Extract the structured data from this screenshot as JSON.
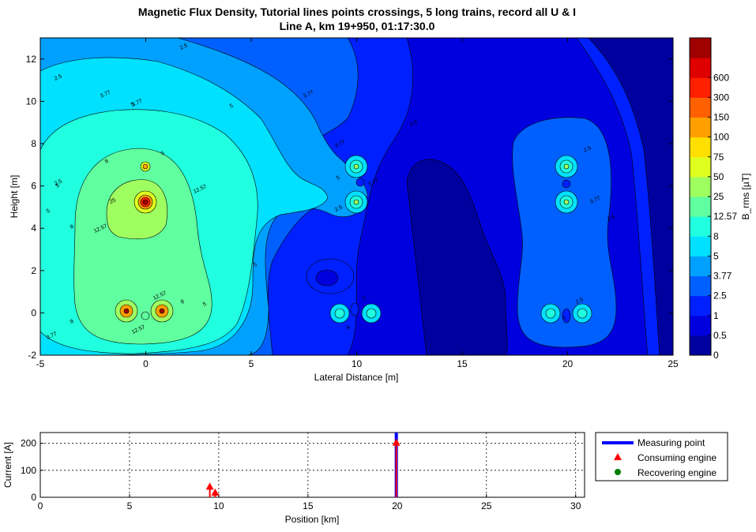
{
  "chart_data": [
    {
      "type": "heatmap",
      "title_line1": "Magnetic Flux Density, Tutorial lines points crossings, 5 long trains, record all U & I",
      "title_line2": "Line A, km 19+950, 01:17:30.0",
      "xlabel": "Lateral Distance [m]",
      "ylabel": "Height [m]",
      "xlim": [
        -5,
        25
      ],
      "ylim": [
        -2,
        13
      ],
      "xticks": [
        "-5",
        "0",
        "5",
        "10",
        "15",
        "20",
        "25"
      ],
      "yticks": [
        "-2",
        "0",
        "2",
        "4",
        "6",
        "8",
        "10",
        "12"
      ],
      "colorbar": {
        "label": "B_rms [µT]",
        "levels": [
          "0",
          "0.5",
          "1",
          "2.5",
          "3.77",
          "5",
          "8",
          "12.57",
          "25",
          "50",
          "75",
          "100",
          "150",
          "300",
          "600"
        ],
        "colors": [
          "#00009f",
          "#0000df",
          "#0020ff",
          "#0060ff",
          "#00a0ff",
          "#00e0ff",
          "#20ffdf",
          "#60ff9f",
          "#a0ff60",
          "#dfff20",
          "#ffdf00",
          "#ffa000",
          "#ff6000",
          "#ff2000",
          "#df0000",
          "#9f0000"
        ]
      },
      "sources": [
        {
          "x": 0,
          "y": 5.3
        },
        {
          "x": 0,
          "y": 7.0
        },
        {
          "x": -0.9,
          "y": 0
        },
        {
          "x": 0.8,
          "y": 0
        },
        {
          "x": 0,
          "y": -0.2
        },
        {
          "x": 10,
          "y": 7.0
        },
        {
          "x": 10,
          "y": 5.3
        },
        {
          "x": 10.1,
          "y": 6.2
        },
        {
          "x": 9.3,
          "y": 0
        },
        {
          "x": 10.8,
          "y": 0
        },
        {
          "x": 10,
          "y": 0.1
        },
        {
          "x": 20,
          "y": 7.0
        },
        {
          "x": 20,
          "y": 5.3
        },
        {
          "x": 20,
          "y": 6.2
        },
        {
          "x": 19.2,
          "y": 0
        },
        {
          "x": 20.8,
          "y": 0
        },
        {
          "x": 20,
          "y": -0.2
        }
      ],
      "contour_labels": [
        "2.5",
        "2.5",
        "3.77",
        "5",
        "5",
        "3.77",
        "2.5",
        "3.77",
        "8",
        "12.57",
        "25",
        "12.57",
        "8",
        "5",
        "5",
        "3.77",
        "2.5",
        "12.57",
        "8",
        "5",
        "3.77",
        "5",
        "8",
        "5",
        "12.57",
        "8",
        "5",
        "3.77",
        "2.5",
        "2.5",
        "2.5",
        "1",
        "1",
        "2.5",
        "3.77"
      ]
    },
    {
      "type": "scatter",
      "xlabel": "Position [km]",
      "ylabel": "Current [A]",
      "xlim": [
        0,
        30.5
      ],
      "ylim": [
        0,
        240
      ],
      "xticks": [
        "0",
        "5",
        "10",
        "15",
        "20",
        "25",
        "30"
      ],
      "yticks": [
        "0",
        "100",
        "200"
      ],
      "grid": true,
      "series": [
        {
          "name": "Measuring point",
          "marker": "line",
          "color": "#0000ff",
          "x": [
            19.95
          ]
        },
        {
          "name": "Consuming engine",
          "marker": "triangle",
          "color": "#ff0000",
          "x": [
            9.5,
            9.8,
            19.95
          ],
          "y": [
            37,
            15,
            200
          ]
        },
        {
          "name": "Recovering engine",
          "marker": "circle",
          "color": "#007f00",
          "x": [],
          "y": []
        }
      ],
      "legend_position": "right"
    }
  ]
}
